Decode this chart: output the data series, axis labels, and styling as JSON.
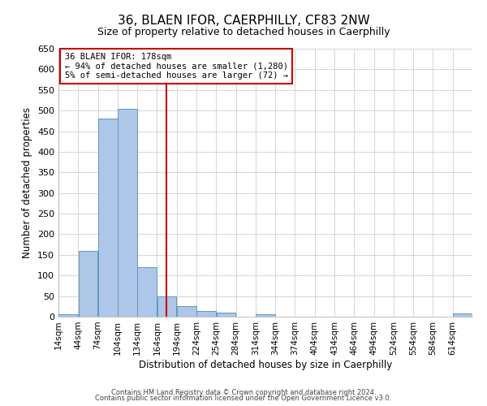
{
  "title": "36, BLAEN IFOR, CAERPHILLY, CF83 2NW",
  "subtitle": "Size of property relative to detached houses in Caerphilly",
  "xlabel": "Distribution of detached houses by size in Caerphilly",
  "ylabel": "Number of detached properties",
  "bin_edges": [
    14,
    44,
    74,
    104,
    134,
    164,
    194,
    224,
    254,
    284,
    314,
    344,
    374,
    404,
    434,
    464,
    494,
    524,
    554,
    584,
    614,
    644
  ],
  "bar_heights": [
    5,
    160,
    480,
    505,
    120,
    50,
    25,
    13,
    10,
    0,
    5,
    0,
    0,
    0,
    0,
    0,
    0,
    0,
    0,
    0,
    8
  ],
  "bar_color": "#aec6e8",
  "bar_edge_color": "#5a9abf",
  "property_size": 178,
  "vline_color": "#cc0000",
  "ylim": [
    0,
    650
  ],
  "yticks": [
    0,
    50,
    100,
    150,
    200,
    250,
    300,
    350,
    400,
    450,
    500,
    550,
    600,
    650
  ],
  "annotation_title": "36 BLAEN IFOR: 178sqm",
  "annotation_line1": "← 94% of detached houses are smaller (1,280)",
  "annotation_line2": "5% of semi-detached houses are larger (72) →",
  "annotation_box_color": "#ffffff",
  "annotation_box_edge": "#cc0000",
  "footer1": "Contains HM Land Registry data © Crown copyright and database right 2024.",
  "footer2": "Contains public sector information licensed under the Open Government Licence v3.0.",
  "background_color": "#ffffff",
  "grid_color": "#d0d0d0",
  "title_fontsize": 11,
  "subtitle_fontsize": 9,
  "ylabel_fontsize": 8.5,
  "xlabel_fontsize": 8.5,
  "ytick_fontsize": 8,
  "xtick_fontsize": 7.5,
  "footer_fontsize": 6,
  "annot_fontsize": 7.5
}
